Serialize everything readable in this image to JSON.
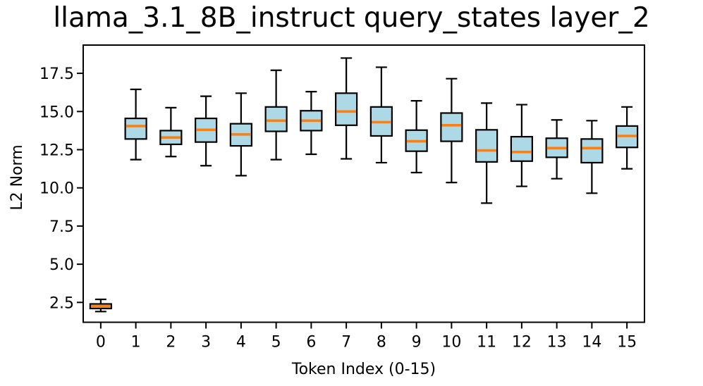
{
  "chart_data": {
    "type": "boxplot",
    "title": "llama_3.1_8B_instruct query_states layer_2",
    "xlabel": "Token Index (0-15)",
    "ylabel": "L2 Norm",
    "categories": [
      "0",
      "1",
      "2",
      "3",
      "4",
      "5",
      "6",
      "7",
      "8",
      "9",
      "10",
      "11",
      "12",
      "13",
      "14",
      "15"
    ],
    "yticks": [
      2.5,
      5.0,
      7.5,
      10.0,
      12.5,
      15.0,
      17.5
    ],
    "ytick_labels": [
      "2.5",
      "5.0",
      "7.5",
      "10.0",
      "12.5",
      "15.0",
      "17.5"
    ],
    "ylim": [
      1.2,
      19.35
    ],
    "grid": false,
    "legend": null,
    "boxes": [
      {
        "token": 0,
        "whislo": 1.9,
        "q1": 2.1,
        "med": 2.25,
        "q3": 2.4,
        "whishi": 2.7
      },
      {
        "token": 1,
        "whislo": 11.85,
        "q1": 13.2,
        "med": 14.05,
        "q3": 14.55,
        "whishi": 16.45
      },
      {
        "token": 2,
        "whislo": 12.05,
        "q1": 12.85,
        "med": 13.3,
        "q3": 13.75,
        "whishi": 15.25
      },
      {
        "token": 3,
        "whislo": 11.45,
        "q1": 13.0,
        "med": 13.8,
        "q3": 14.55,
        "whishi": 16.0
      },
      {
        "token": 4,
        "whislo": 10.8,
        "q1": 12.75,
        "med": 13.5,
        "q3": 14.2,
        "whishi": 16.2
      },
      {
        "token": 5,
        "whislo": 11.85,
        "q1": 13.7,
        "med": 14.4,
        "q3": 15.3,
        "whishi": 17.7
      },
      {
        "token": 6,
        "whislo": 12.2,
        "q1": 13.75,
        "med": 14.4,
        "q3": 15.05,
        "whishi": 16.3
      },
      {
        "token": 7,
        "whislo": 11.9,
        "q1": 14.1,
        "med": 15.0,
        "q3": 16.2,
        "whishi": 18.5
      },
      {
        "token": 8,
        "whislo": 11.65,
        "q1": 13.4,
        "med": 14.3,
        "q3": 15.3,
        "whishi": 17.9
      },
      {
        "token": 9,
        "whislo": 11.0,
        "q1": 12.4,
        "med": 13.05,
        "q3": 13.78,
        "whishi": 15.7
      },
      {
        "token": 10,
        "whislo": 10.35,
        "q1": 13.05,
        "med": 14.1,
        "q3": 14.9,
        "whishi": 17.15
      },
      {
        "token": 11,
        "whislo": 9.0,
        "q1": 11.7,
        "med": 12.45,
        "q3": 13.8,
        "whishi": 15.55
      },
      {
        "token": 12,
        "whislo": 10.1,
        "q1": 11.75,
        "med": 12.35,
        "q3": 13.35,
        "whishi": 15.45
      },
      {
        "token": 13,
        "whislo": 10.6,
        "q1": 12.0,
        "med": 12.6,
        "q3": 13.25,
        "whishi": 14.45
      },
      {
        "token": 14,
        "whislo": 9.65,
        "q1": 11.65,
        "med": 12.6,
        "q3": 13.2,
        "whishi": 14.4
      },
      {
        "token": 15,
        "whislo": 11.25,
        "q1": 12.65,
        "med": 13.4,
        "q3": 14.05,
        "whishi": 15.3
      }
    ],
    "colors": {
      "box_fill": "#ADD8E6",
      "median": "#FF7F0E",
      "line": "#000000",
      "background": "#FFFFFF"
    }
  }
}
